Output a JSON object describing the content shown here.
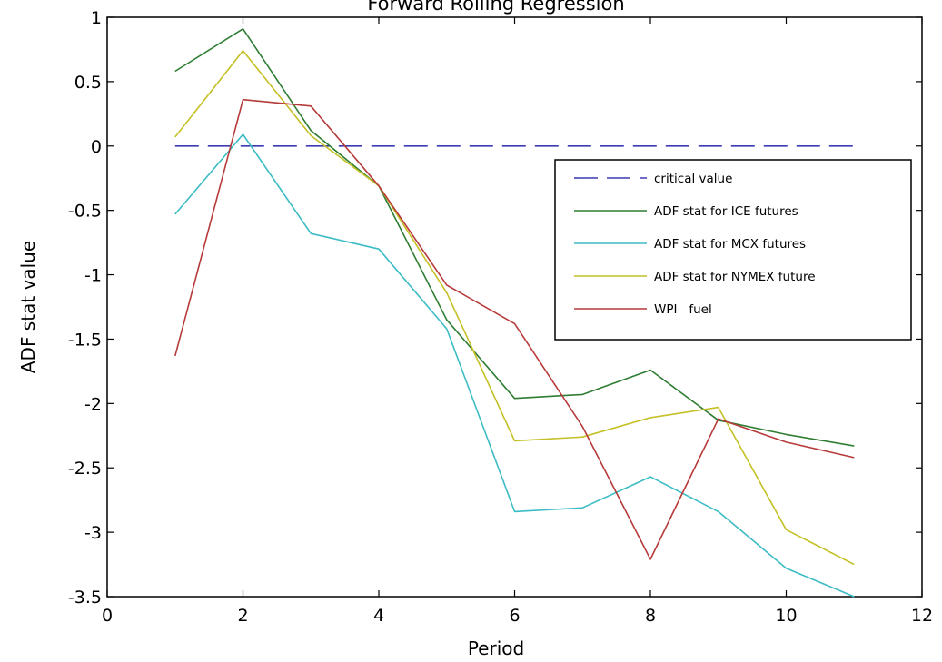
{
  "chart_data": {
    "type": "line",
    "title": "Forward Rolling Regression",
    "xlabel": "Period",
    "ylabel": "ADF stat value",
    "xlim": [
      0,
      12
    ],
    "ylim": [
      -3.5,
      1
    ],
    "xticks": [
      "0",
      "2",
      "4",
      "6",
      "8",
      "10",
      "12"
    ],
    "yticks": [
      "1",
      "0.5",
      "0",
      "-0.5",
      "-1",
      "-1.5",
      "-2",
      "-2.5",
      "-3",
      "-3.5"
    ],
    "grid": false,
    "legend_position": "right",
    "x": [
      1,
      2,
      3,
      4,
      5,
      6,
      7,
      8,
      9,
      10,
      11
    ],
    "series": [
      {
        "name": "critical value",
        "color": "#3c3cb4",
        "style": "dashed",
        "values": [
          0,
          0,
          0,
          0,
          0,
          0,
          0,
          0,
          0,
          0,
          0
        ]
      },
      {
        "name": "ADF stat for ICE futures",
        "color": "#2e7d32",
        "style": "solid",
        "values": [
          0.58,
          0.91,
          0.12,
          -0.31,
          -1.35,
          -1.96,
          -1.93,
          -1.74,
          -2.13,
          -2.24,
          -2.33
        ]
      },
      {
        "name": "ADF stat for MCX futures",
        "color": "#3cbcc4",
        "style": "solid",
        "values": [
          -0.53,
          0.09,
          -0.68,
          -0.8,
          -1.42,
          -2.84,
          -2.81,
          -2.57,
          -2.84,
          -3.28,
          -3.5
        ]
      },
      {
        "name": "ADF stat for NYMEX future",
        "color": "#c4c026",
        "style": "solid",
        "values": [
          0.07,
          0.74,
          0.08,
          -0.31,
          -1.14,
          -2.29,
          -2.26,
          -2.11,
          -2.03,
          -2.98,
          -3.25
        ]
      },
      {
        "name": "WPI   fuel",
        "color": "#b73a3a",
        "style": "solid",
        "values": [
          -1.63,
          0.36,
          0.31,
          -0.31,
          -1.08,
          -1.38,
          -2.18,
          -3.21,
          -2.12,
          -2.3,
          -2.42
        ]
      }
    ]
  }
}
